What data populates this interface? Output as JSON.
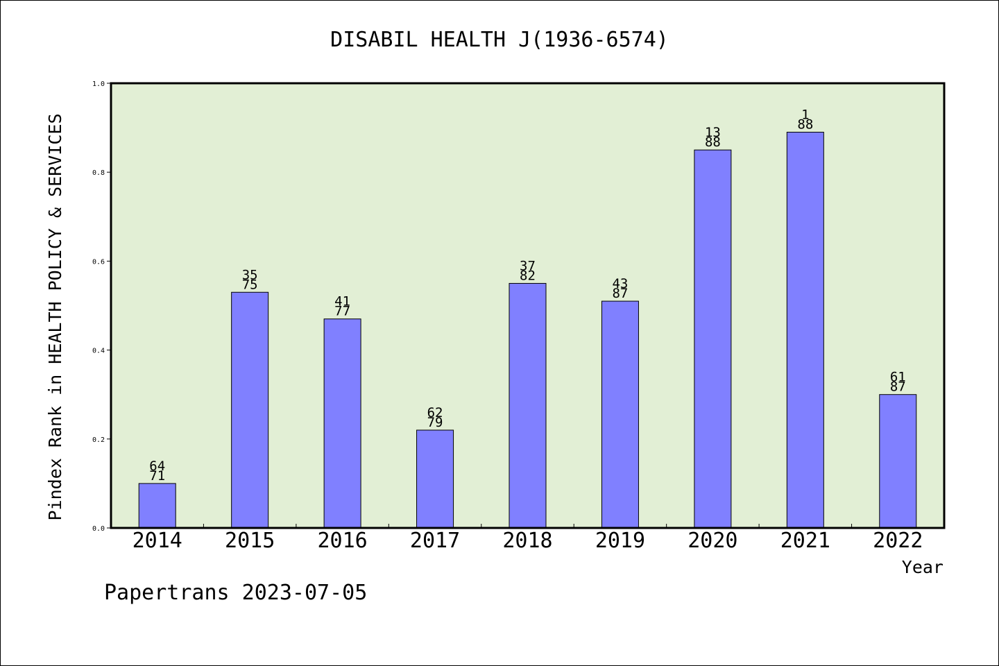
{
  "chart_data": {
    "type": "bar",
    "title": "DISABIL HEALTH J(1936-6574)",
    "xlabel": "Year",
    "ylabel": "Pindex Rank in HEALTH POLICY & SERVICES",
    "categories": [
      "2014",
      "2015",
      "2016",
      "2017",
      "2018",
      "2019",
      "2020",
      "2021",
      "2022"
    ],
    "values": [
      0.1,
      0.53,
      0.47,
      0.22,
      0.55,
      0.51,
      0.85,
      0.89,
      0.3
    ],
    "labels_top": [
      "64",
      "35",
      "41",
      "62",
      "37",
      "43",
      "13",
      "1",
      "61"
    ],
    "labels_bottom": [
      "71",
      "75",
      "77",
      "79",
      "82",
      "87",
      "88",
      "88",
      "87"
    ],
    "ylim": [
      0,
      1.0
    ],
    "yticks": [
      "0.0",
      "0.2",
      "0.4",
      "0.6",
      "0.8",
      "1.0"
    ],
    "grid": false,
    "colors": {
      "bar": "#8080ff",
      "plot_background": "#e2efd5"
    }
  },
  "footer": {
    "text": "Papertrans 2023-07-05"
  }
}
